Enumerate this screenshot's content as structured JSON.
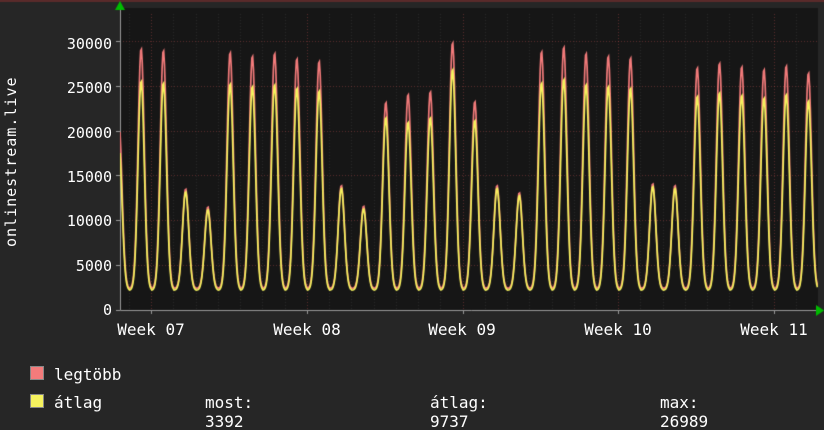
{
  "chart_data": {
    "type": "line",
    "title": "",
    "ylabel_rotated": "onlinestream.live",
    "xlabel": "",
    "ylim": [
      0,
      33000
    ],
    "y_ticks": [
      0,
      5000,
      10000,
      15000,
      20000,
      25000,
      30000
    ],
    "y_tick_labels": [
      "0",
      "5000",
      "10000",
      "15000",
      "20000",
      "25000",
      "30000"
    ],
    "x_ticks": [
      "Week 07",
      "Week 08",
      "Week 09",
      "Week 10",
      "Week 11"
    ],
    "week_ticks_t": [
      2,
      9,
      16,
      23,
      30
    ],
    "t_start": 0.6,
    "t_end": 31.98,
    "days": 32,
    "grid": true,
    "legend_position": "bottom-left",
    "series": [
      {
        "name": "legtöbb",
        "color": "#f37b7b",
        "base": 2400,
        "day_peaks": [
          21000,
          29200,
          29000,
          13500,
          11500,
          28800,
          28400,
          28700,
          28100,
          27800,
          13900,
          11600,
          23200,
          24100,
          24400,
          29900,
          23300,
          13900,
          13100,
          28900,
          29400,
          28700,
          28400,
          28200,
          14100,
          13900,
          27100,
          27600,
          27200,
          26900,
          27300,
          26500
        ]
      },
      {
        "name": "átlag",
        "color": "#f5f25e",
        "base": 2200,
        "day_peaks": [
          18500,
          25600,
          25400,
          13200,
          11200,
          25300,
          25000,
          25200,
          24800,
          24500,
          13600,
          11300,
          21500,
          21000,
          21500,
          26900,
          21200,
          13600,
          12800,
          25400,
          25800,
          25200,
          25000,
          24800,
          13800,
          13600,
          23900,
          24300,
          24000,
          23700,
          24100,
          23400
        ]
      }
    ],
    "stats": {
      "most": 3392,
      "atlag": 9737,
      "max": 26989
    }
  },
  "legend": {
    "row1_label": "legtöbb",
    "row2_label": "átlag",
    "stats_display": [
      "most: 3392",
      "átlag: 9737",
      "max: 26989"
    ]
  },
  "colors": {
    "bg": "#262626",
    "plot_bg": "#161616",
    "text": "#ffffff",
    "arrow": "#00bb00",
    "grid_major": "rgba(220,90,90,0.35)",
    "grid_minor": "rgba(255,255,255,0.08)",
    "axis": "#999999",
    "top_border": "#5a2a2a",
    "series_red": "#f37b7b",
    "series_yellow": "#f5f25e"
  }
}
